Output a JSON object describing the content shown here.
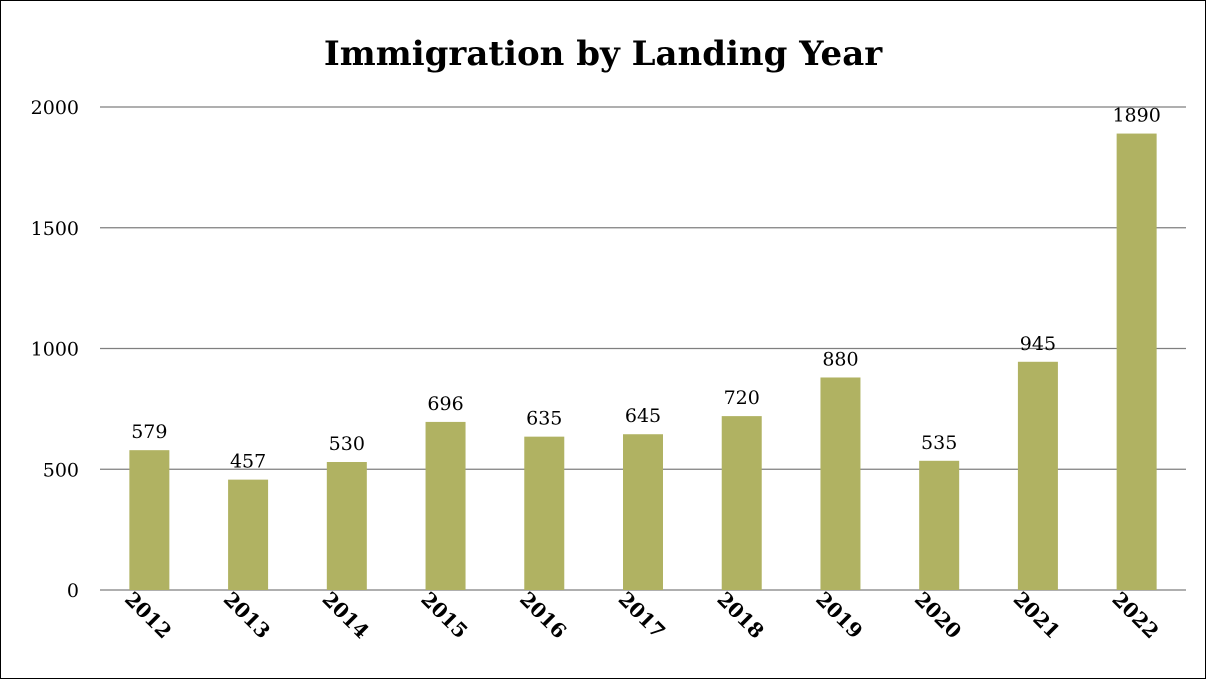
{
  "chart_data": {
    "type": "bar",
    "title": "Immigration by Landing Year",
    "categories": [
      "2012",
      "2013",
      "2014",
      "2015",
      "2016",
      "2017",
      "2018",
      "2019",
      "2020",
      "2021",
      "2022"
    ],
    "values": [
      579,
      457,
      530,
      696,
      635,
      645,
      720,
      880,
      535,
      945,
      1890
    ],
    "data_labels": [
      "579",
      "457",
      "530",
      "696",
      "635",
      "645",
      "720",
      "880",
      "535",
      "945",
      "1890"
    ],
    "ylim": [
      0,
      2000
    ],
    "yticks": [
      0,
      500,
      1000,
      1500,
      2000
    ],
    "ytick_labels": [
      "0",
      "500",
      "1000",
      "1500",
      "2000"
    ],
    "grid": true,
    "bar_color": "#b0b262",
    "legend": "none"
  }
}
